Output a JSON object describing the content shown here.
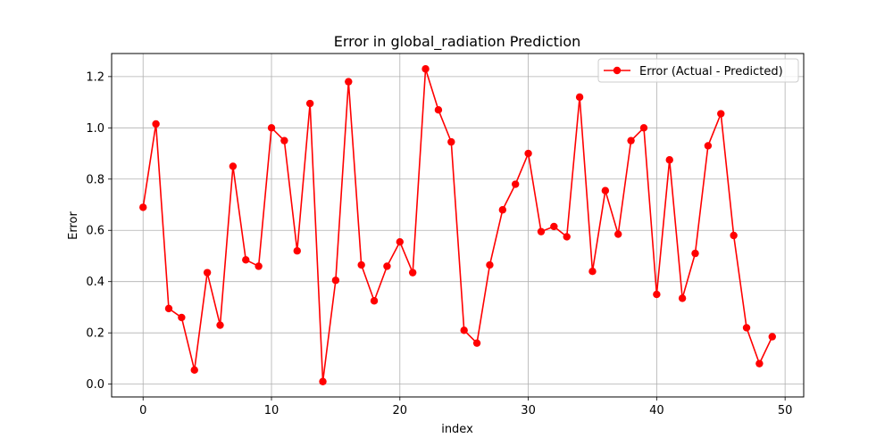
{
  "chart_data": {
    "type": "line",
    "title": "Error in global_radiation Prediction",
    "xlabel": "index",
    "ylabel": "Error",
    "xlim": [
      -2.45,
      51.45
    ],
    "ylim": [
      -0.05,
      1.29
    ],
    "xticks": [
      0,
      10,
      20,
      30,
      40,
      50
    ],
    "yticks": [
      0.0,
      0.2,
      0.4,
      0.6,
      0.8,
      1.0,
      1.2
    ],
    "ytick_labels": [
      "0.0",
      "0.2",
      "0.4",
      "0.6",
      "0.8",
      "1.0",
      "1.2"
    ],
    "grid": true,
    "legend_position": "top-right",
    "series": [
      {
        "name": "Error (Actual - Predicted)",
        "color": "#ff0000",
        "marker": "circle",
        "x": [
          0,
          1,
          2,
          3,
          4,
          5,
          6,
          7,
          8,
          9,
          10,
          11,
          12,
          13,
          14,
          15,
          16,
          17,
          18,
          19,
          20,
          21,
          22,
          23,
          24,
          25,
          26,
          27,
          28,
          29,
          30,
          31,
          32,
          33,
          34,
          35,
          36,
          37,
          38,
          39,
          40,
          41,
          42,
          43,
          44,
          45,
          46,
          47,
          48,
          49
        ],
        "y": [
          0.69,
          1.015,
          0.295,
          0.26,
          0.055,
          0.435,
          0.23,
          0.85,
          0.485,
          0.46,
          1.0,
          0.95,
          0.52,
          1.095,
          0.01,
          0.405,
          1.18,
          0.465,
          0.325,
          0.46,
          0.555,
          0.435,
          1.23,
          1.07,
          0.945,
          0.21,
          0.16,
          0.465,
          0.68,
          0.78,
          0.9,
          0.595,
          0.615,
          0.575,
          1.12,
          0.44,
          0.755,
          0.585,
          0.95,
          1.0,
          0.35,
          0.875,
          0.335,
          0.51,
          0.93,
          1.055,
          0.58,
          0.22,
          0.08,
          0.185
        ]
      }
    ]
  }
}
